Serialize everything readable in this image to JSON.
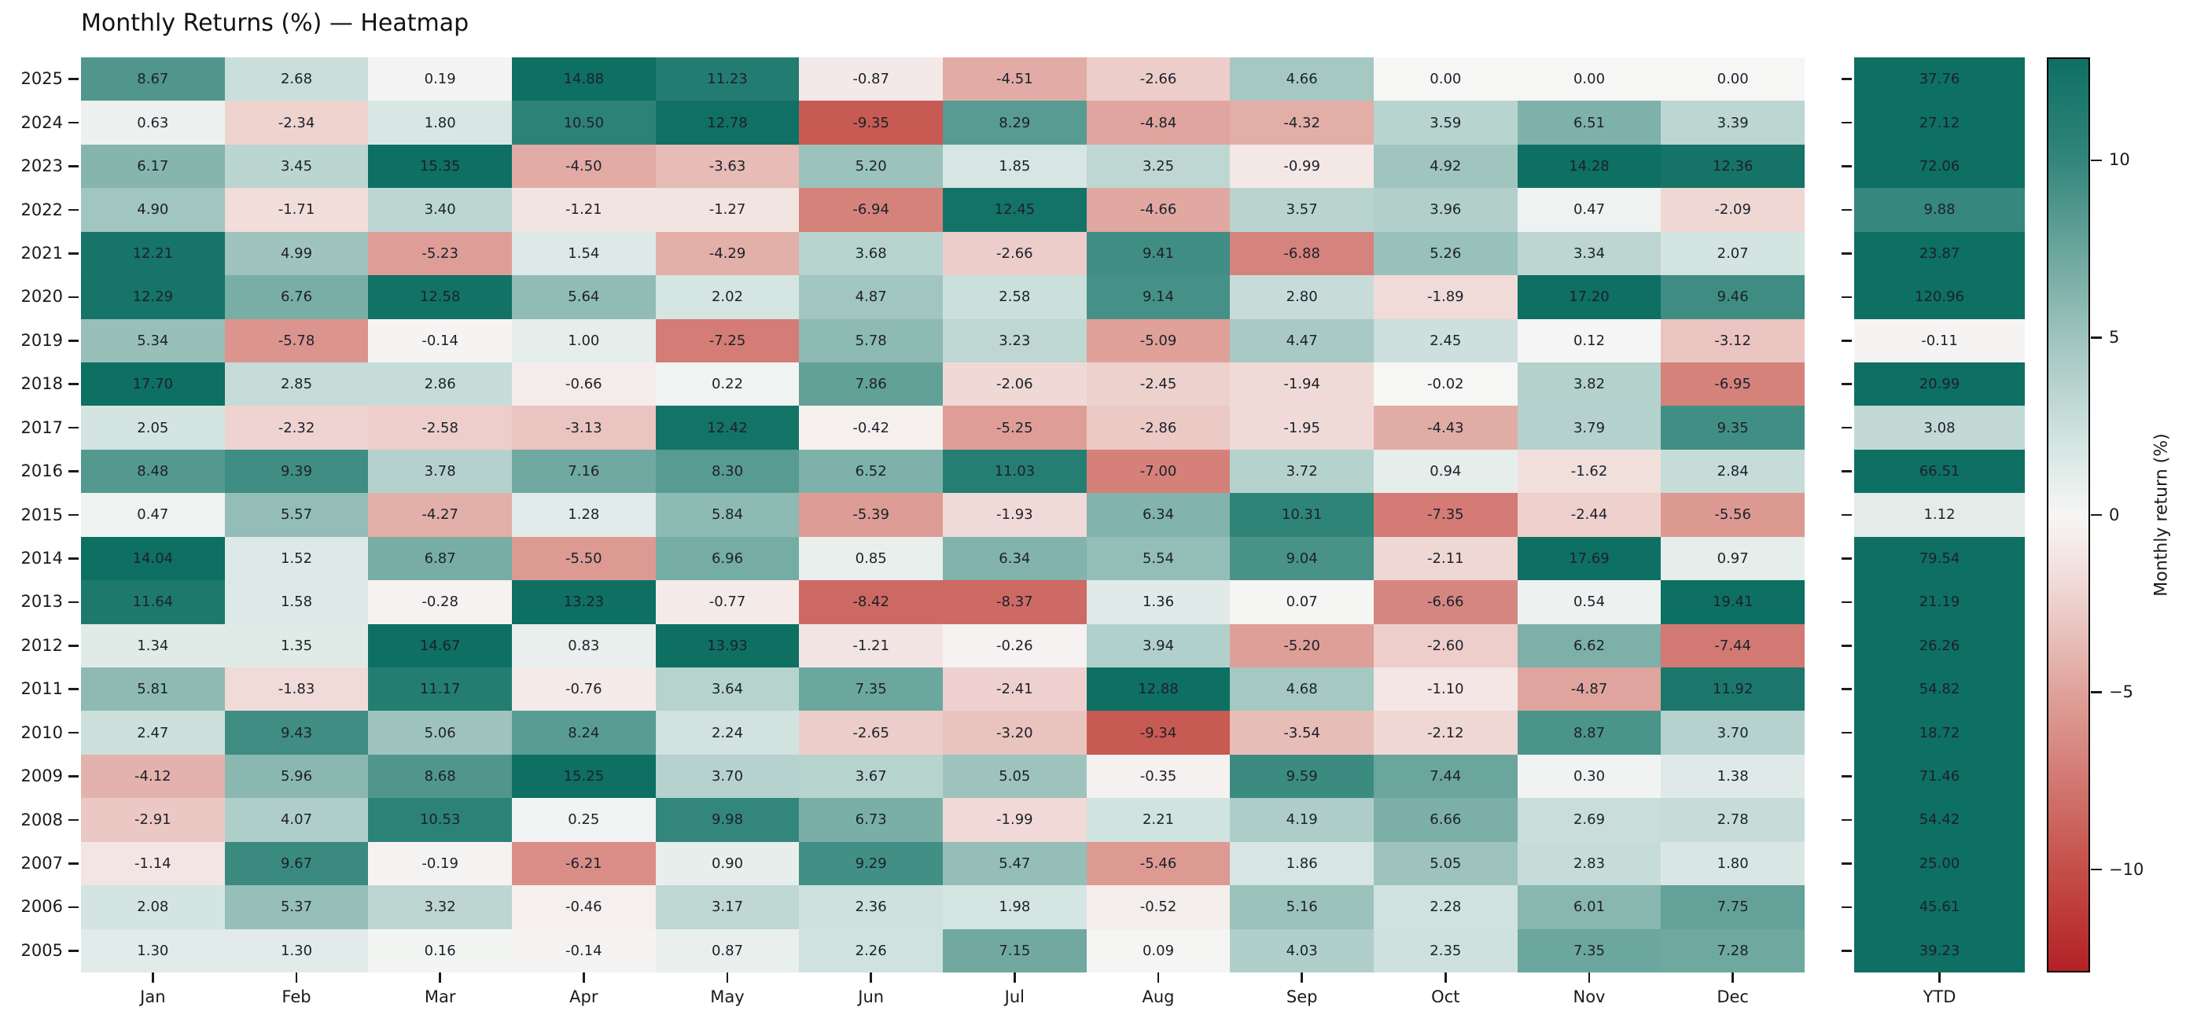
{
  "title": "Monthly Returns (%) — Heatmap",
  "chart_data": {
    "type": "heatmap",
    "title": "Monthly Returns (%) — Heatmap",
    "columns": [
      "Jan",
      "Feb",
      "Mar",
      "Apr",
      "May",
      "Jun",
      "Jul",
      "Aug",
      "Sep",
      "Oct",
      "Nov",
      "Dec"
    ],
    "rows": [
      "2025",
      "2024",
      "2023",
      "2022",
      "2021",
      "2020",
      "2019",
      "2018",
      "2017",
      "2016",
      "2015",
      "2014",
      "2013",
      "2012",
      "2011",
      "2010",
      "2009",
      "2008",
      "2007",
      "2006",
      "2005"
    ],
    "values": [
      [
        8.67,
        2.68,
        0.19,
        14.88,
        11.23,
        -0.87,
        -4.51,
        -2.66,
        4.66,
        0.0,
        0.0,
        0.0
      ],
      [
        0.63,
        -2.34,
        1.8,
        10.5,
        12.78,
        -9.35,
        8.29,
        -4.84,
        -4.32,
        3.59,
        6.51,
        3.39
      ],
      [
        6.17,
        3.45,
        15.35,
        -4.5,
        -3.63,
        5.2,
        1.85,
        3.25,
        -0.99,
        4.92,
        14.28,
        12.36
      ],
      [
        4.9,
        -1.71,
        3.4,
        -1.21,
        -1.27,
        -6.94,
        12.45,
        -4.66,
        3.57,
        3.96,
        0.47,
        -2.09
      ],
      [
        12.21,
        4.99,
        -5.23,
        1.54,
        -4.29,
        3.68,
        -2.66,
        9.41,
        -6.88,
        5.26,
        3.34,
        2.07
      ],
      [
        12.29,
        6.76,
        12.58,
        5.64,
        2.02,
        4.87,
        2.58,
        9.14,
        2.8,
        -1.89,
        17.2,
        9.46
      ],
      [
        5.34,
        -5.78,
        -0.14,
        1.0,
        -7.25,
        5.78,
        3.23,
        -5.09,
        4.47,
        2.45,
        0.12,
        -3.12
      ],
      [
        17.7,
        2.85,
        2.86,
        -0.66,
        0.22,
        7.86,
        -2.06,
        -2.45,
        -1.94,
        -0.02,
        3.82,
        -6.95
      ],
      [
        2.05,
        -2.32,
        -2.58,
        -3.13,
        12.42,
        -0.42,
        -5.25,
        -2.86,
        -1.95,
        -4.43,
        3.79,
        9.35
      ],
      [
        8.48,
        9.39,
        3.78,
        7.16,
        8.3,
        6.52,
        11.03,
        -7.0,
        3.72,
        0.94,
        -1.62,
        2.84
      ],
      [
        0.47,
        5.57,
        -4.27,
        1.28,
        5.84,
        -5.39,
        -1.93,
        6.34,
        10.31,
        -7.35,
        -2.44,
        -5.56
      ],
      [
        14.04,
        1.52,
        6.87,
        -5.5,
        6.96,
        0.85,
        6.34,
        5.54,
        9.04,
        -2.11,
        17.69,
        0.97
      ],
      [
        11.64,
        1.58,
        -0.28,
        13.23,
        -0.77,
        -8.42,
        -8.37,
        1.36,
        0.07,
        -6.66,
        0.54,
        19.41
      ],
      [
        1.34,
        1.35,
        14.67,
        0.83,
        13.93,
        -1.21,
        -0.26,
        3.94,
        -5.2,
        -2.6,
        6.62,
        -7.44
      ],
      [
        5.81,
        -1.83,
        11.17,
        -0.76,
        3.64,
        7.35,
        -2.41,
        12.88,
        4.68,
        -1.1,
        -4.87,
        11.92
      ],
      [
        2.47,
        9.43,
        5.06,
        8.24,
        2.24,
        -2.65,
        -3.2,
        -9.34,
        -3.54,
        -2.12,
        8.87,
        3.7
      ],
      [
        -4.12,
        5.96,
        8.68,
        15.25,
        3.7,
        3.67,
        5.05,
        -0.35,
        9.59,
        7.44,
        0.3,
        1.38
      ],
      [
        -2.91,
        4.07,
        10.53,
        0.25,
        9.98,
        6.73,
        -1.99,
        2.21,
        4.19,
        6.66,
        2.69,
        2.78
      ],
      [
        -1.14,
        9.67,
        -0.19,
        -6.21,
        0.9,
        9.29,
        5.47,
        -5.46,
        1.86,
        5.05,
        2.83,
        1.8
      ],
      [
        2.08,
        5.37,
        3.32,
        -0.46,
        3.17,
        2.36,
        1.98,
        -0.52,
        5.16,
        2.28,
        6.01,
        7.75
      ],
      [
        1.3,
        1.3,
        0.16,
        -0.14,
        0.87,
        2.26,
        7.15,
        0.09,
        4.03,
        2.35,
        7.35,
        7.28
      ]
    ],
    "ytd_label": "YTD",
    "ytd": [
      37.76,
      27.12,
      72.06,
      9.88,
      23.87,
      120.96,
      -0.11,
      20.99,
      3.08,
      66.51,
      1.12,
      79.54,
      21.19,
      26.26,
      54.82,
      18.72,
      71.46,
      54.42,
      25.0,
      45.61,
      39.23
    ],
    "colorbar": {
      "label": "Monthly return (%)",
      "ticks": [
        10,
        5,
        0,
        -5,
        -10
      ],
      "vmin": -12.9,
      "vmax": 12.9
    },
    "palette_stops": [
      [
        -12.9,
        "#b32126"
      ],
      [
        -10.0,
        "#c54f49"
      ],
      [
        -5.0,
        "#dfa29b"
      ],
      [
        -2.0,
        "#f0d9d6"
      ],
      [
        0.0,
        "#f6f6f5"
      ],
      [
        2.0,
        "#d5e5e2"
      ],
      [
        5.0,
        "#9fc4be"
      ],
      [
        10.0,
        "#33867b"
      ],
      [
        12.9,
        "#0e6f63"
      ]
    ],
    "annotation_text_color": "#1c212b"
  }
}
